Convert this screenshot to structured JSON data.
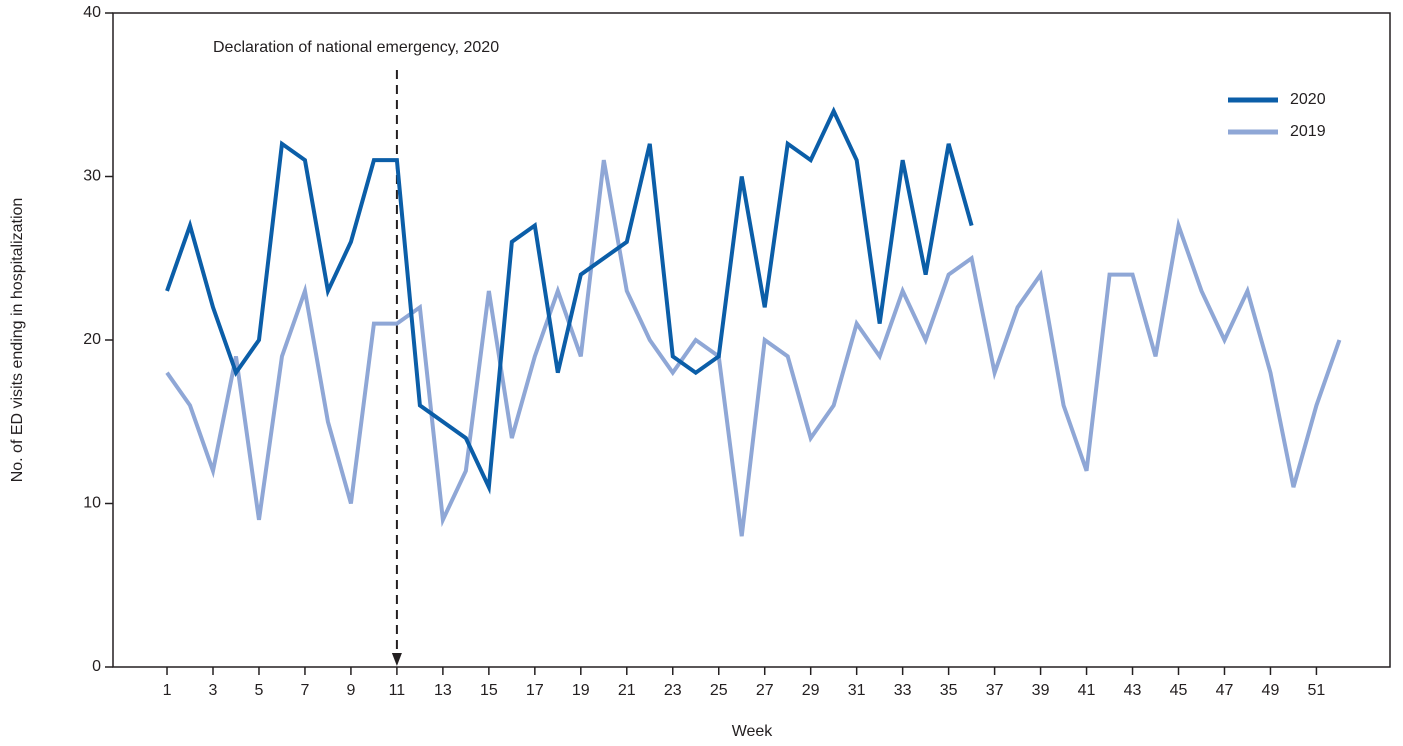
{
  "chart_data": {
    "type": "line",
    "x_label": "Week",
    "y_label": "No. of ED visits ending in hospitalization",
    "x": [
      1,
      2,
      3,
      4,
      5,
      6,
      7,
      8,
      9,
      10,
      11,
      12,
      13,
      14,
      15,
      16,
      17,
      18,
      19,
      20,
      21,
      22,
      23,
      24,
      25,
      26,
      27,
      28,
      29,
      30,
      31,
      32,
      33,
      34,
      35,
      36,
      37,
      38,
      39,
      40,
      41,
      42,
      43,
      44,
      45,
      46,
      47,
      48,
      49,
      50,
      51,
      52
    ],
    "series": [
      {
        "name": "2020",
        "color": "#0b5ea8",
        "values": [
          23,
          27,
          22,
          18,
          20,
          32,
          31,
          23,
          26,
          31,
          31,
          16,
          15,
          14,
          11,
          26,
          27,
          18,
          24,
          25,
          26,
          32,
          19,
          18,
          19,
          30,
          22,
          32,
          31,
          34,
          31,
          21,
          31,
          24,
          32,
          27,
          null,
          null,
          null,
          null,
          null,
          null,
          null,
          null,
          null,
          null,
          null,
          null,
          null,
          null,
          null,
          null
        ]
      },
      {
        "name": "2019",
        "color": "#8fa7d6",
        "values": [
          18,
          16,
          12,
          19,
          9,
          19,
          23,
          15,
          10,
          21,
          21,
          22,
          9,
          12,
          23,
          14,
          19,
          23,
          19,
          31,
          23,
          20,
          18,
          20,
          19,
          8,
          20,
          19,
          14,
          16,
          21,
          19,
          23,
          20,
          24,
          25,
          18,
          22,
          24,
          16,
          12,
          24,
          24,
          19,
          27,
          23,
          20,
          23,
          18,
          11,
          16,
          20
        ]
      }
    ],
    "annotation": {
      "text": "Declaration of national emergency, 2020",
      "x": 11
    },
    "xlim": [
      -1.35,
      54.2
    ],
    "xticks": [
      1,
      3,
      5,
      7,
      9,
      11,
      13,
      15,
      17,
      19,
      21,
      23,
      25,
      27,
      29,
      31,
      33,
      35,
      37,
      39,
      41,
      43,
      45,
      47,
      49,
      51
    ],
    "ylim": [
      0,
      40
    ],
    "yticks": [
      0,
      10,
      20,
      30,
      40
    ],
    "legend": "upper right"
  }
}
